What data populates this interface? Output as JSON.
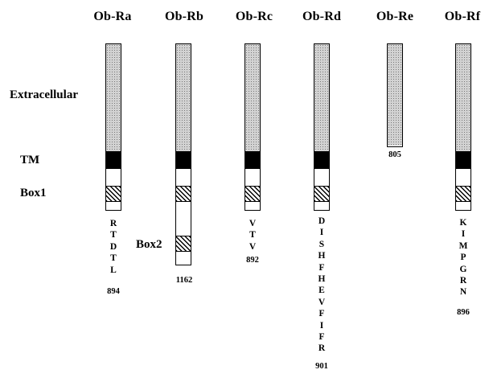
{
  "titles": [
    "Ob-Ra",
    "Ob-Rb",
    "Ob-Rc",
    "Ob-Rd",
    "Ob-Re",
    "Ob-Rf"
  ],
  "labels": {
    "extracellular": "Extracellular",
    "tm": "TM",
    "box1": "Box1",
    "box2": "Box2"
  },
  "receptors": [
    {
      "name": "Ob-Ra",
      "sequence": [
        "R",
        "T",
        "D",
        "T",
        "L"
      ],
      "end": "894"
    },
    {
      "name": "Ob-Rb",
      "sequence": [],
      "end": "1162"
    },
    {
      "name": "Ob-Rc",
      "sequence": [
        "V",
        "T",
        "V"
      ],
      "end": "892"
    },
    {
      "name": "Ob-Rd",
      "sequence": [
        "D",
        "I",
        "S",
        "H",
        "F",
        "H",
        "E",
        "V",
        "F",
        "I",
        "F",
        "R"
      ],
      "end": "901"
    },
    {
      "name": "Ob-Re",
      "sequence": [],
      "end": "805"
    },
    {
      "name": "Ob-Rf",
      "sequence": [
        "K",
        "I",
        "M",
        "P",
        "G",
        "R",
        "N"
      ],
      "end": "896"
    }
  ]
}
